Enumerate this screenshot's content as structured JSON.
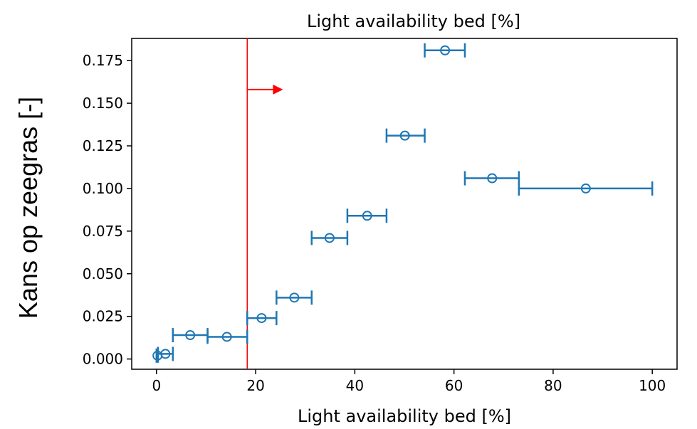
{
  "chart_data": {
    "type": "scatter",
    "title": "Light availability bed [%]",
    "xlabel": "Light availability bed [%]",
    "ylabel": "Kans op zeegras [-]",
    "xlim": [
      -5,
      105
    ],
    "ylim": [
      -0.006,
      0.188
    ],
    "xticks": [
      0,
      20,
      40,
      60,
      80,
      100
    ],
    "xtick_labels": [
      "0",
      "20",
      "40",
      "60",
      "80",
      "100"
    ],
    "yticks": [
      0.0,
      0.025,
      0.05,
      0.075,
      0.1,
      0.125,
      0.15,
      0.175
    ],
    "ytick_labels": [
      "0.000",
      "0.025",
      "0.050",
      "0.075",
      "0.100",
      "0.125",
      "0.150",
      "0.175"
    ],
    "grid": false,
    "series_color": "#1f77b4",
    "points": [
      {
        "x": 0.2,
        "y": 0.002,
        "xmin": 0.0,
        "xmax": 0.3
      },
      {
        "x": 1.8,
        "y": 0.003,
        "xmin": 0.3,
        "xmax": 3.3
      },
      {
        "x": 6.8,
        "y": 0.014,
        "xmin": 3.3,
        "xmax": 10.3
      },
      {
        "x": 14.2,
        "y": 0.013,
        "xmin": 10.3,
        "xmax": 18.3
      },
      {
        "x": 21.2,
        "y": 0.024,
        "xmin": 18.3,
        "xmax": 24.2
      },
      {
        "x": 27.8,
        "y": 0.036,
        "xmin": 24.2,
        "xmax": 31.3
      },
      {
        "x": 34.9,
        "y": 0.071,
        "xmin": 31.3,
        "xmax": 38.5
      },
      {
        "x": 42.5,
        "y": 0.084,
        "xmin": 38.5,
        "xmax": 46.4
      },
      {
        "x": 50.1,
        "y": 0.131,
        "xmin": 46.4,
        "xmax": 54.1
      },
      {
        "x": 58.2,
        "y": 0.181,
        "xmin": 54.1,
        "xmax": 62.2
      },
      {
        "x": 67.7,
        "y": 0.106,
        "xmin": 62.2,
        "xmax": 73.1
      },
      {
        "x": 86.6,
        "y": 0.1,
        "xmin": 73.1,
        "xmax": 100.0
      }
    ],
    "threshold": {
      "x": 18.3,
      "color": "#ff0000",
      "arrow_direction": "right",
      "arrow_y": 0.158,
      "arrow_x_end": 25.5
    }
  }
}
